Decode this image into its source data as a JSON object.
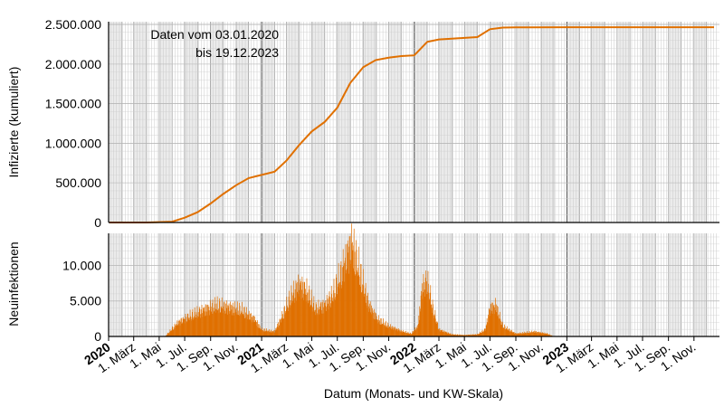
{
  "chart_data": [
    {
      "type": "line",
      "ylabel": "Infizierte (kumuliert)",
      "ylim": [
        0,
        2500000
      ],
      "yticks": [
        0,
        500000,
        1000000,
        1500000,
        2000000,
        2500000
      ],
      "ytick_labels": [
        "0",
        "500.000",
        "1.000.000",
        "1.500.000",
        "2.000.000",
        "2.500.000"
      ],
      "annotation": [
        "Daten vom 03.01.2020",
        "bis 19.12.2023"
      ],
      "color": "#e07000",
      "grid": true,
      "series": [
        {
          "x": [
            "2020-01-03",
            "2020-04-01",
            "2020-06-01",
            "2020-07-01",
            "2020-08-01",
            "2020-09-01",
            "2020-10-01",
            "2020-11-01",
            "2020-12-01",
            "2021-01-01",
            "2021-02-01",
            "2021-03-01",
            "2021-04-01",
            "2021-05-01",
            "2021-06-01",
            "2021-07-01",
            "2021-08-01",
            "2021-09-01",
            "2021-10-01",
            "2021-11-01",
            "2021-12-01",
            "2022-01-01",
            "2022-02-01",
            "2022-03-01",
            "2022-04-01",
            "2022-05-01",
            "2022-06-01",
            "2022-07-01",
            "2022-08-01",
            "2022-09-01",
            "2022-10-01",
            "2023-01-01",
            "2023-12-19"
          ],
          "values": [
            0,
            0,
            10000,
            60000,
            130000,
            240000,
            360000,
            470000,
            560000,
            600000,
            640000,
            780000,
            980000,
            1150000,
            1270000,
            1450000,
            1760000,
            1960000,
            2050000,
            2080000,
            2100000,
            2110000,
            2280000,
            2310000,
            2320000,
            2330000,
            2340000,
            2440000,
            2460000,
            2462000,
            2463000,
            2465000,
            2465000
          ]
        }
      ]
    },
    {
      "type": "bar",
      "ylabel": "Neuinfektionen",
      "ylim": [
        0,
        14000
      ],
      "yticks": [
        0,
        5000,
        10000
      ],
      "ytick_labels": [
        "0",
        "5.000",
        "10.000"
      ],
      "color": "#e07000",
      "grid": true,
      "series": [
        {
          "x": [
            "2020-01-03",
            "2020-05-15",
            "2020-06-15",
            "2020-07-15",
            "2020-08-15",
            "2020-09-15",
            "2020-10-15",
            "2020-11-15",
            "2020-12-15",
            "2021-01-01",
            "2021-02-01",
            "2021-02-20",
            "2021-03-10",
            "2021-04-01",
            "2021-04-20",
            "2021-05-10",
            "2021-06-01",
            "2021-06-20",
            "2021-07-10",
            "2021-07-20",
            "2021-08-05",
            "2021-08-25",
            "2021-09-15",
            "2021-10-05",
            "2021-11-01",
            "2021-12-01",
            "2021-12-25",
            "2022-01-10",
            "2022-01-20",
            "2022-02-01",
            "2022-02-15",
            "2022-03-01",
            "2022-04-01",
            "2022-05-01",
            "2022-06-01",
            "2022-06-20",
            "2022-07-01",
            "2022-07-15",
            "2022-08-01",
            "2022-09-01",
            "2022-10-15",
            "2022-11-15",
            "2022-12-01"
          ],
          "values": [
            0,
            0,
            2000,
            3000,
            3800,
            4500,
            4200,
            3800,
            2500,
            1000,
            700,
            3000,
            5500,
            7500,
            6500,
            4000,
            4500,
            6000,
            9000,
            11000,
            13500,
            9000,
            4500,
            2500,
            1500,
            800,
            400,
            1500,
            7000,
            8000,
            4000,
            1000,
            300,
            200,
            300,
            1000,
            4000,
            4500,
            1500,
            400,
            700,
            400,
            0
          ]
        }
      ]
    }
  ],
  "x_axis": {
    "label": "Datum (Monats- und KW-Skala)",
    "range": [
      "2020-01-01",
      "2023-12-31"
    ],
    "tick_labels": [
      {
        "text": "2020",
        "date": "2020-01-01",
        "year": true
      },
      {
        "text": "1. März",
        "date": "2020-03-01"
      },
      {
        "text": "1. Mai",
        "date": "2020-05-01"
      },
      {
        "text": "1. Jul.",
        "date": "2020-07-01"
      },
      {
        "text": "1. Sep.",
        "date": "2020-09-01"
      },
      {
        "text": "1. Nov.",
        "date": "2020-11-01"
      },
      {
        "text": "2021",
        "date": "2021-01-01",
        "year": true
      },
      {
        "text": "1. März",
        "date": "2021-03-01"
      },
      {
        "text": "1. Mai",
        "date": "2021-05-01"
      },
      {
        "text": "1. Jul.",
        "date": "2021-07-01"
      },
      {
        "text": "1. Sep.",
        "date": "2021-09-01"
      },
      {
        "text": "1. Nov.",
        "date": "2021-11-01"
      },
      {
        "text": "2022",
        "date": "2022-01-01",
        "year": true
      },
      {
        "text": "1. März",
        "date": "2022-03-01"
      },
      {
        "text": "1. Mai",
        "date": "2022-05-01"
      },
      {
        "text": "1. Jul.",
        "date": "2022-07-01"
      },
      {
        "text": "1. Sep.",
        "date": "2022-09-01"
      },
      {
        "text": "1. Nov.",
        "date": "2022-11-01"
      },
      {
        "text": "2023",
        "date": "2023-01-01",
        "year": true
      },
      {
        "text": "1. März",
        "date": "2023-03-01"
      },
      {
        "text": "1. Mai",
        "date": "2023-05-01"
      },
      {
        "text": "1. Jul.",
        "date": "2023-07-01"
      },
      {
        "text": "1. Sep.",
        "date": "2023-09-01"
      },
      {
        "text": "1. Nov.",
        "date": "2023-11-01"
      }
    ]
  }
}
